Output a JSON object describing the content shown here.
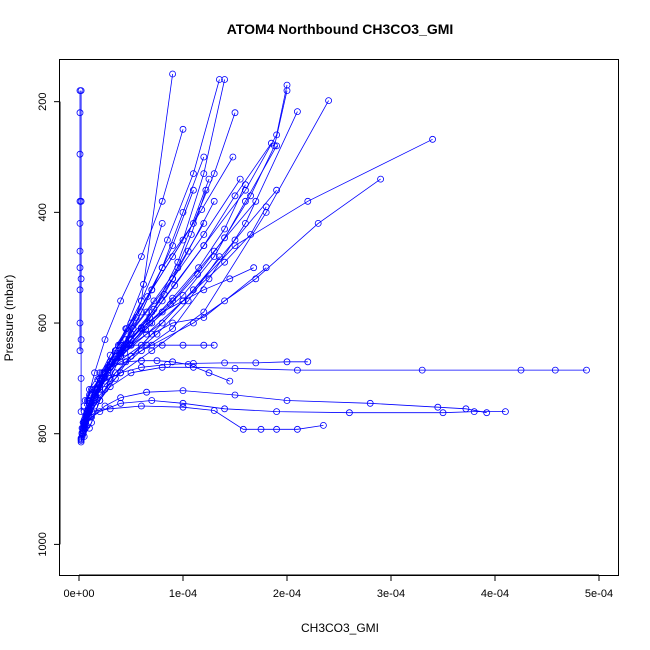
{
  "chart_data": {
    "type": "line",
    "title": "ATOM4 Northbound CH3CO3_GMI",
    "xlabel": "CH3CO3_GMI",
    "ylabel": "Pressure (mbar)",
    "xlim": [
      0,
      0.0005
    ],
    "ylim": [
      1030,
      150
    ],
    "y_reversed": true,
    "grid": false,
    "legend": "none",
    "line_color": "#0000ff",
    "marker": "open-circle",
    "x_ticks": [
      0,
      0.0001,
      0.0002,
      0.0003,
      0.0004,
      0.0005
    ],
    "x_tick_labels": [
      "0e+00",
      "1e-04",
      "2e-04",
      "3e-04",
      "4e-04",
      "5e-04"
    ],
    "y_ticks": [
      200,
      400,
      600,
      800,
      1000
    ],
    "y_tick_labels": [
      "200",
      "400",
      "600",
      "800",
      "1000"
    ],
    "series": [
      {
        "x": [
          5e-06,
          1.2e-05,
          2e-05,
          3.5e-05,
          5e-05,
          7e-05,
          9e-05,
          0.00012,
          0.00014,
          0.00018
        ],
        "y": [
          805,
          780,
          740,
          700,
          660,
          620,
          600,
          590,
          560,
          500
        ]
      },
      {
        "x": [
          3e-06,
          8e-06,
          1.5e-05,
          3e-05,
          6e-05,
          0.0001,
          0.00015,
          0.00022,
          0.00034
        ],
        "y": [
          790,
          760,
          720,
          680,
          640,
          560,
          460,
          380,
          268
        ]
      },
      {
        "x": [
          4e-06,
          1e-05,
          2e-05,
          4e-05,
          7e-05,
          0.00012,
          0.00018,
          0.00024
        ],
        "y": [
          800,
          770,
          730,
          690,
          650,
          580,
          400,
          198
        ]
      },
      {
        "x": [
          2e-06,
          6e-06,
          1.2e-05,
          2.5e-05,
          4e-05,
          6e-05,
          9e-05
        ],
        "y": [
          815,
          790,
          760,
          720,
          660,
          560,
          150
        ]
      },
      {
        "x": [
          6e-06,
          1.5e-05,
          3e-05,
          5e-05,
          8e-05,
          0.00011,
          0.00015,
          0.00021,
          0.00033,
          0.000425,
          0.000458,
          0.000488
        ],
        "y": [
          780,
          750,
          715,
          690,
          680,
          680,
          682,
          685,
          685,
          685,
          685,
          685
        ]
      },
      {
        "x": [
          5e-06,
          2e-05,
          4e-05,
          7e-05,
          0.0001,
          0.00014,
          0.00019,
          0.00026,
          0.00035,
          0.00038,
          0.00041
        ],
        "y": [
          780,
          760,
          745,
          740,
          745,
          755,
          760,
          762,
          762,
          760,
          760
        ]
      },
      {
        "x": [
          1e-05,
          3e-05,
          6e-05,
          0.0001,
          0.00013,
          0.000158,
          0.000175,
          0.00019,
          0.00021,
          0.000235
        ],
        "y": [
          760,
          755,
          750,
          752,
          758,
          792,
          792,
          792,
          792,
          785
        ]
      },
      {
        "x": [
          4e-06,
          1.2e-05,
          2.5e-05,
          4e-05,
          6.5e-05,
          0.0001,
          0.00015,
          0.0002,
          0.00028,
          0.000345,
          0.000372,
          0.000392
        ],
        "y": [
          790,
          770,
          750,
          735,
          725,
          722,
          730,
          740,
          745,
          752,
          755,
          762
        ]
      },
      {
        "x": [
          5e-06,
          1e-05,
          2e-05,
          4e-05,
          7e-05,
          0.00011,
          0.00017,
          0.00023,
          0.00029
        ],
        "y": [
          760,
          730,
          700,
          670,
          640,
          600,
          520,
          420,
          340
        ]
      },
      {
        "x": [
          8e-06,
          2e-05,
          3e-05,
          5e-05,
          8e-05,
          0.00012,
          0.00016,
          0.00019,
          0.0002
        ],
        "y": [
          770,
          720,
          680,
          640,
          560,
          460,
          360,
          260,
          170
        ]
      },
      {
        "x": [
          1e-05,
          2e-05,
          3.5e-05,
          6e-05,
          9e-05,
          0.000125,
          0.00016,
          0.00021
        ],
        "y": [
          790,
          740,
          690,
          650,
          610,
          520,
          420,
          218
        ]
      },
      {
        "x": [
          3e-06,
          7e-06,
          1.5e-05,
          3e-05,
          5e-05,
          8e-05,
          0.00011,
          0.00015,
          0.00019
        ],
        "y": [
          800,
          770,
          730,
          680,
          640,
          600,
          540,
          450,
          360
        ]
      },
      {
        "x": [
          5e-06,
          1.2e-05,
          2.2e-05,
          4e-05,
          6.5e-05,
          0.0001,
          0.00014,
          0.000165,
          0.00018
        ],
        "y": [
          790,
          750,
          700,
          660,
          620,
          560,
          490,
          440,
          390
        ]
      },
      {
        "x": [
          2e-06,
          4e-06,
          8e-06,
          1.5e-05,
          2.5e-05,
          4e-05,
          6e-05,
          8e-05,
          0.0001
        ],
        "y": [
          810,
          780,
          740,
          690,
          630,
          560,
          480,
          380,
          250
        ]
      },
      {
        "x": [
          4e-06,
          1e-05,
          2e-05,
          3.5e-05,
          5.5e-05,
          8e-05,
          0.00011,
          0.00013,
          0.00015
        ],
        "y": [
          780,
          740,
          700,
          650,
          590,
          500,
          420,
          330,
          220
        ]
      },
      {
        "x": [
          6e-06,
          1.5e-05,
          2.5e-05,
          4e-05,
          6e-05,
          9e-05,
          0.00013,
          0.00017
        ],
        "y": [
          770,
          730,
          690,
          650,
          610,
          560,
          470,
          380
        ]
      },
      {
        "x": [
          3e-06,
          8e-06,
          1.8e-05,
          3e-05,
          5e-05,
          7e-05,
          0.0001,
          0.00012,
          0.00014
        ],
        "y": [
          800,
          760,
          720,
          680,
          620,
          540,
          450,
          330,
          160
        ]
      },
      {
        "x": [
          5e-06,
          1.2e-05,
          2e-05,
          3.2e-05,
          5e-05,
          7.2e-05,
          9.5e-05,
          0.000125
        ],
        "y": [
          785,
          745,
          710,
          670,
          630,
          575,
          490,
          340
        ]
      },
      {
        "x": [
          4e-06,
          1e-05,
          1.8e-05,
          3e-05,
          4.5e-05,
          6.5e-05,
          9e-05,
          0.00012,
          0.000155
        ],
        "y": [
          795,
          760,
          720,
          675,
          630,
          580,
          520,
          440,
          340
        ]
      },
      {
        "x": [
          2e-06,
          6e-06,
          1e-05,
          1.8e-05,
          3e-05,
          4.5e-05,
          6.2e-05,
          8e-05
        ],
        "y": [
          812,
          790,
          760,
          720,
          670,
          610,
          530,
          420
        ]
      },
      {
        "x": [
          8e-06,
          1.8e-05,
          3e-05,
          4.8e-05,
          7e-05,
          0.0001,
          0.00013,
          0.00016,
          0.00019
        ],
        "y": [
          760,
          720,
          680,
          640,
          600,
          550,
          480,
          380,
          280
        ]
      },
      {
        "x": [
          5e-06,
          1.5e-05,
          3e-05,
          5e-05,
          7.5e-05,
          0.000105,
          0.000135
        ],
        "y": [
          775,
          735,
          700,
          660,
          620,
          560,
          480
        ]
      },
      {
        "x": [
          3e-06,
          9e-06,
          1.6e-05,
          2.8e-05,
          4.2e-05,
          6e-05,
          8e-05,
          0.0001,
          0.00012
        ],
        "y": [
          805,
          770,
          730,
          690,
          640,
          580,
          500,
          400,
          300
        ]
      },
      {
        "x": [
          1e-05,
          2e-05,
          3e-05,
          4e-05,
          6e-05,
          8e-05,
          0.0001,
          0.00012,
          0.000145,
          0.000168
        ],
        "y": [
          740,
          700,
          670,
          640,
          610,
          580,
          560,
          540,
          520,
          500
        ]
      },
      {
        "x": [
          6e-06,
          1.4e-05,
          2.4e-05,
          3.6e-05,
          5.2e-05,
          7.2e-05,
          9.5e-05,
          0.00012
        ],
        "y": [
          780,
          740,
          700,
          660,
          610,
          560,
          500,
          420
        ]
      },
      {
        "x": [
          1e-06,
          1e-06,
          1e-06,
          1e-06,
          1e-06,
          1e-06,
          1e-06,
          1e-06,
          1e-06,
          1e-06
        ],
        "y": [
          180,
          220,
          295,
          380,
          420,
          470,
          500,
          540,
          600,
          650
        ]
      },
      {
        "x": [
          2e-06,
          2e-06,
          2e-06,
          2e-06,
          2e-06,
          2e-06
        ],
        "y": [
          180,
          380,
          520,
          630,
          700,
          760
        ]
      },
      {
        "x": [
          4e-06,
          8e-06,
          1.5e-05,
          2.5e-05,
          4e-05,
          6e-05,
          8.5e-05,
          0.00011,
          0.00014,
          0.00017,
          0.0002,
          0.00022
        ],
        "y": [
          790,
          760,
          730,
          705,
          690,
          680,
          675,
          673,
          672,
          672,
          670,
          670
        ]
      },
      {
        "x": [
          5e-06,
          1e-05,
          2e-05,
          3.5e-05,
          5e-05,
          6.5e-05,
          8e-05,
          0.0001,
          0.00012,
          0.00013
        ],
        "y": [
          750,
          720,
          690,
          655,
          640,
          640,
          640,
          640,
          640,
          640
        ]
      },
      {
        "x": [
          6e-06,
          1.2e-05,
          2e-05,
          3e-05,
          4.5e-05,
          6e-05,
          7.5e-05,
          9e-05,
          0.000105,
          0.000125,
          0.000145
        ],
        "y": [
          740,
          720,
          700,
          680,
          670,
          668,
          668,
          670,
          675,
          690,
          705
        ]
      },
      {
        "x": [
          4e-06,
          1e-05,
          2.2e-05,
          3.8e-05,
          6e-05,
          8.5e-05,
          0.00011,
          0.000135
        ],
        "y": [
          790,
          745,
          700,
          640,
          560,
          450,
          330,
          160
        ]
      },
      {
        "x": [
          3e-06,
          7e-06,
          1.3e-05,
          2.2e-05,
          3.5e-05,
          5e-05,
          7e-05,
          9e-05,
          0.00011
        ],
        "y": [
          798,
          765,
          728,
          690,
          650,
          600,
          540,
          460,
          360
        ]
      },
      {
        "x": [
          8e-06,
          1.6e-05,
          2.8e-05,
          4.5e-05,
          6.8e-05,
          9e-05,
          0.000115,
          0.00014,
          0.00016
        ],
        "y": [
          765,
          725,
          685,
          645,
          600,
          555,
          500,
          430,
          350
        ]
      },
      {
        "x": [
          6e-06,
          1.1e-05,
          2e-05,
          3.2e-05,
          4.8e-05,
          7e-05,
          9e-05,
          0.000108,
          0.000122
        ],
        "y": [
          785,
          750,
          712,
          672,
          628,
          580,
          520,
          440,
          360
        ]
      },
      {
        "x": [
          4e-06,
          9e-06,
          1.7e-05,
          3e-05,
          4.6e-05,
          6.8e-05,
          9.2e-05,
          0.00012,
          0.00015,
          0.000185
        ],
        "y": [
          795,
          758,
          720,
          680,
          638,
          590,
          532,
          460,
          370,
          275
        ]
      },
      {
        "x": [
          5e-06,
          1.3e-05,
          2.4e-05,
          4e-05,
          6e-05,
          8.2e-05,
          0.000105,
          0.00013
        ],
        "y": [
          780,
          740,
          698,
          655,
          608,
          548,
          470,
          380
        ]
      },
      {
        "x": [
          2e-06,
          5e-06,
          1e-05,
          1.8e-05,
          3e-05,
          4.6e-05,
          6.6e-05,
          9e-05,
          0.000118,
          0.000148
        ],
        "y": [
          808,
          778,
          742,
          702,
          658,
          610,
          552,
          480,
          395,
          300
        ]
      },
      {
        "x": [
          7e-06,
          1.6e-05,
          2.8e-05,
          4.4e-05,
          6.4e-05,
          8.8e-05,
          0.000114,
          0.00014,
          0.000165,
          0.000188,
          0.0002
        ],
        "y": [
          770,
          732,
          694,
          654,
          612,
          566,
          512,
          446,
          370,
          280,
          180
        ]
      }
    ]
  }
}
